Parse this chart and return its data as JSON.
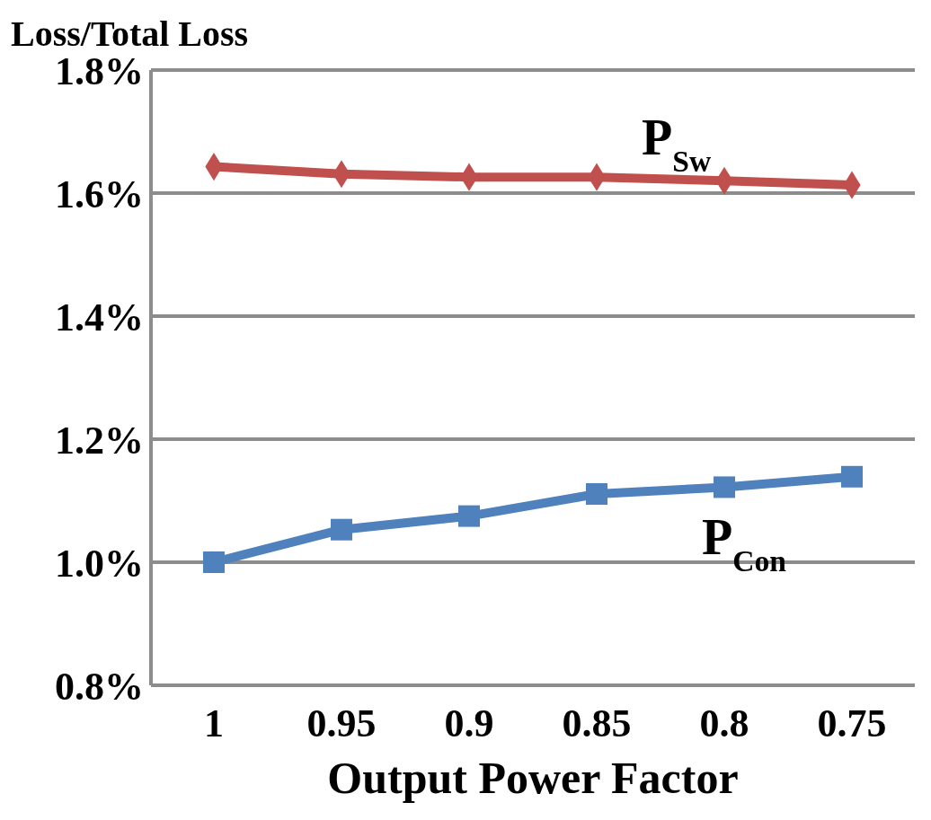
{
  "chart_data": {
    "type": "line",
    "xlabel": "Output Power Factor",
    "ylabel": "Loss/Total Loss",
    "categories": [
      "1",
      "0.95",
      "0.9",
      "0.85",
      "0.8",
      "0.75"
    ],
    "series": [
      {
        "name": "P$_{Sw}$",
        "color": "#c0504d",
        "marker": "diamond",
        "values": [
          1.643,
          1.631,
          1.626,
          1.626,
          1.62,
          1.613
        ]
      },
      {
        "name": "P$_{Con}$",
        "color": "#4f81bd",
        "marker": "square",
        "values": [
          1.0,
          1.053,
          1.075,
          1.111,
          1.122,
          1.139
        ]
      }
    ],
    "ylim": [
      0.8,
      1.8
    ],
    "yticks": [
      {
        "value": 0.8,
        "label": "0.8%"
      },
      {
        "value": 1.0,
        "label": "1.0%"
      },
      {
        "value": 1.2,
        "label": "1.2%"
      },
      {
        "value": 1.4,
        "label": "1.4%"
      },
      {
        "value": 1.6,
        "label": "1.6%"
      },
      {
        "value": 1.8,
        "label": "1.8%"
      }
    ],
    "grid": "y"
  }
}
